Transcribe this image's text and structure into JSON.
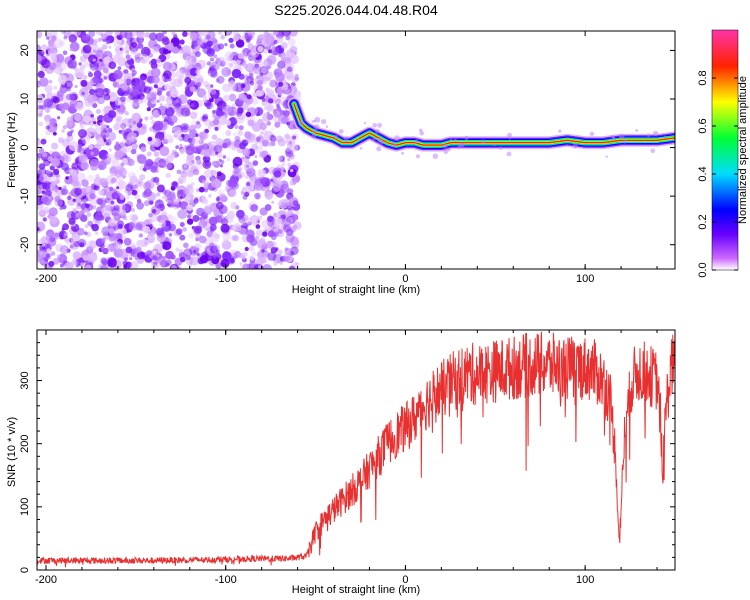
{
  "title": "S225.2026.044.04.48.R04",
  "chart_data": [
    {
      "type": "heatmap",
      "name": "spectrogram",
      "xlabel": "Height of straight line (km)",
      "ylabel": "Frequency (Hz)",
      "xlim": [
        -205,
        150
      ],
      "ylim": [
        -25,
        24
      ],
      "xticks": [
        -200,
        -100,
        0,
        100
      ],
      "xtick_labels": [
        "-200",
        "-100",
        "0",
        "100"
      ],
      "yticks": [
        -20,
        -10,
        0,
        10,
        20
      ],
      "ytick_labels": [
        "-20",
        "-10",
        "0",
        "10",
        "20"
      ],
      "noise_region_x": [
        -205,
        -60
      ],
      "ridge_x": [
        -62,
        -58,
        -55,
        -50,
        -45,
        -40,
        -35,
        -30,
        -25,
        -20,
        -15,
        -10,
        -5,
        0,
        5,
        10,
        15,
        20,
        25,
        30,
        40,
        60,
        80,
        90,
        100,
        110,
        120,
        130,
        140,
        150
      ],
      "ridge_y": [
        9,
        5,
        4,
        3,
        2.5,
        2,
        1,
        1,
        2,
        3,
        2,
        1,
        0.5,
        1,
        1,
        0.5,
        0.5,
        0.5,
        1,
        1,
        1,
        1,
        1,
        1.5,
        1,
        1,
        1.5,
        1.5,
        1.5,
        2
      ],
      "colorbar": {
        "label": "Normalized spectral amplitude",
        "range": [
          0,
          1
        ],
        "ticks": [
          0.0,
          0.2,
          0.4,
          0.6,
          0.8
        ],
        "tick_labels": [
          "0.0",
          "0.2",
          "0.4",
          "0.6",
          "0.8"
        ]
      }
    },
    {
      "type": "line",
      "name": "snr",
      "xlabel": "Height of straight line (km)",
      "ylabel": "SNR (10 * v/v)",
      "xlim": [
        -205,
        150
      ],
      "ylim": [
        0,
        380
      ],
      "xticks": [
        -200,
        -100,
        0,
        100
      ],
      "xtick_labels": [
        "-200",
        "-100",
        "0",
        "100"
      ],
      "yticks": [
        0,
        100,
        200,
        300
      ],
      "ytick_labels": [
        "0",
        "100",
        "200",
        "300"
      ],
      "line_color": "#e83030",
      "x": [
        -205,
        -180,
        -160,
        -140,
        -120,
        -100,
        -80,
        -65,
        -55,
        -50,
        -45,
        -40,
        -35,
        -30,
        -25,
        -20,
        -15,
        -10,
        -5,
        0,
        5,
        10,
        15,
        20,
        25,
        30,
        35,
        40,
        50,
        60,
        70,
        80,
        90,
        100,
        105,
        110,
        114,
        117,
        119,
        122,
        126,
        130,
        135,
        140,
        142,
        143,
        145,
        148,
        150
      ],
      "y": [
        15,
        15,
        15,
        15,
        16,
        17,
        18,
        18,
        22,
        60,
        80,
        95,
        110,
        125,
        140,
        160,
        180,
        200,
        215,
        225,
        240,
        260,
        275,
        285,
        295,
        305,
        310,
        310,
        315,
        320,
        325,
        325,
        320,
        320,
        315,
        300,
        270,
        180,
        40,
        220,
        300,
        315,
        310,
        300,
        240,
        150,
        260,
        320,
        330
      ]
    }
  ]
}
